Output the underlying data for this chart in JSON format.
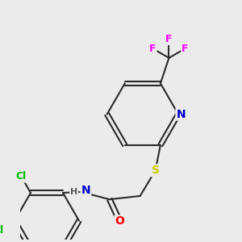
{
  "bg_color": "#ebebeb",
  "atom_colors": {
    "F": "#ff00ff",
    "N": "#0000cc",
    "S": "#cccc00",
    "O": "#ff0000",
    "Cl": "#00bb00",
    "H": "#555555",
    "C": "#333333"
  },
  "bond_color": "#2a2a2a",
  "bond_lw": 1.5,
  "font_size": 9
}
